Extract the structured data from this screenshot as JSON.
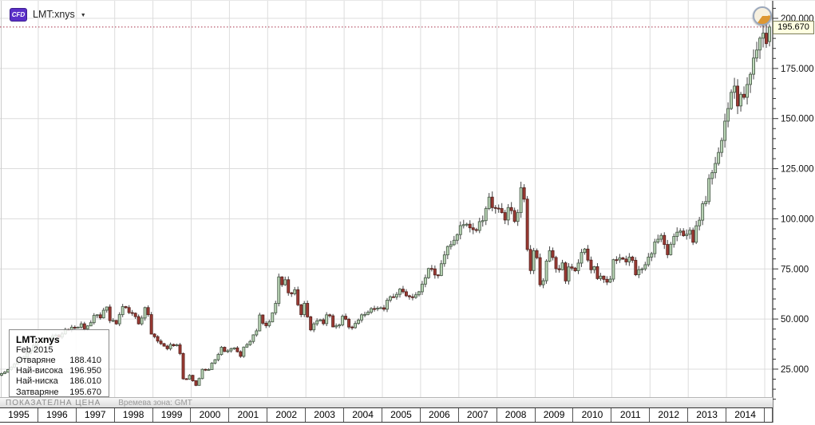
{
  "window": {
    "symbol": "LMT:xnys",
    "instrument_badge": "CFD"
  },
  "icons": {
    "dropdown_arrow": "▼"
  },
  "price_callout": {
    "value": "195.670"
  },
  "info_panel": {
    "title": "LMT:xnys",
    "period": "Feb 2015",
    "rows": [
      {
        "label": "Отваряне",
        "value": "188.410"
      },
      {
        "label": "Най-висока",
        "value": "196.950"
      },
      {
        "label": "Най-ниска",
        "value": "186.010"
      },
      {
        "label": "Затваряне",
        "value": "195.670"
      }
    ]
  },
  "status_bar": {
    "left": "ПОКАЗАТЕЛНА ЦЕНА",
    "right": "Времева зона: GMT"
  },
  "chart_data": {
    "type": "candlestick",
    "title": "LMT:xnys monthly CFD price",
    "symbol": "LMT:xnys",
    "interval": "monthly",
    "start_month": "1995-01",
    "end_month": "2015-02",
    "first_open": 22.0,
    "closes": [
      22.8,
      23.5,
      24.8,
      26.0,
      27.5,
      29.0,
      30.2,
      31.0,
      32.8,
      34.2,
      36.8,
      39.4,
      38.8,
      39.6,
      40.4,
      39.8,
      41.6,
      42.0,
      41.0,
      42.6,
      44.8,
      44.6,
      45.9,
      45.7,
      45.9,
      47.6,
      45.1,
      46.6,
      48.2,
      51.8,
      52.1,
      50.6,
      54.4,
      56.0,
      49.2,
      49.3,
      47.6,
      52.2,
      56.2,
      55.7,
      53.2,
      52.9,
      51.2,
      47.6,
      50.5,
      55.7,
      52.2,
      42.5,
      41.2,
      39.0,
      37.7,
      36.5,
      35.2,
      37.3,
      36.7,
      37.1,
      32.8,
      20.2,
      20.0,
      21.9,
      19.2,
      16.9,
      20.3,
      24.9,
      24.7,
      24.8,
      28.0,
      29.7,
      32.3,
      35.9,
      33.8,
      34.1,
      35.1,
      35.6,
      33.7,
      31.4,
      36.0,
      37.2,
      38.8,
      42.1,
      44.1,
      52.0,
      47.9,
      46.7,
      48.6,
      53.1,
      57.8,
      71.0,
      67.1,
      69.6,
      63.1,
      62.6,
      64.6,
      57.1,
      52.2,
      57.8,
      51.1,
      44.6,
      47.6,
      49.1,
      49.6,
      47.7,
      52.1,
      51.6,
      46.1,
      46.6,
      47.1,
      51.4,
      49.9,
      46.0,
      45.7,
      47.8,
      49.5,
      52.1,
      52.3,
      53.4,
      55.2,
      55.1,
      55.4,
      55.6,
      54.9,
      59.4,
      61.1,
      61.0,
      62.3,
      64.9,
      63.6,
      61.6,
      61.1,
      60.8,
      62.1,
      63.6,
      67.4,
      70.6,
      75.2,
      75.0,
      72.0,
      71.7,
      77.6,
      82.0,
      86.2,
      87.1,
      89.3,
      92.1,
      96.6,
      97.1,
      97.3,
      95.5,
      94.6,
      94.2,
      98.6,
      99.1,
      105.1,
      110.8,
      105.6,
      105.3,
      105.1,
      103.1,
      99.4,
      105.6,
      104.1,
      98.7,
      103.1,
      115.5,
      109.8,
      84.7,
      74.2,
      84.1,
      80.6,
      67.1,
      69.1,
      78.9,
      84.1,
      80.7,
      75.1,
      74.6,
      78.0,
      69.0,
      76.0,
      75.4,
      74.1,
      77.9,
      83.2,
      84.9,
      79.4,
      74.6,
      76.1,
      70.2,
      71.4,
      69.8,
      68.4,
      69.9,
      79.6,
      79.5,
      80.5,
      79.9,
      78.5,
      80.9,
      79.3,
      72.1,
      74.6,
      75.0,
      77.1,
      80.9,
      82.6,
      88.4,
      89.8,
      91.7,
      87.2,
      82.1,
      87.3,
      91.2,
      93.3,
      93.9,
      91.6,
      92.3,
      94.3,
      88.3,
      96.5,
      99.3,
      107.5,
      108.6,
      120.1,
      123.0,
      127.6,
      133.1,
      139.1,
      148.7,
      155.0,
      163.1,
      166.2,
      156.3,
      162.1,
      160.6,
      167.0,
      172.1,
      180.2,
      184.2,
      190.1,
      192.6,
      187.4,
      195.67
    ],
    "last_candle": {
      "period": "Feb 2015",
      "open": 188.41,
      "high": 196.95,
      "low": 186.01,
      "close": 195.67
    },
    "current_price": 195.67,
    "y_axis": {
      "ticks": [
        25,
        50,
        75,
        100,
        125,
        150,
        175,
        200
      ],
      "minor_step": 5,
      "label_format": "3-decimals"
    },
    "x_axis": {
      "year_labels": [
        "1995",
        "1996",
        "1997",
        "1998",
        "1999",
        "2000",
        "2001",
        "2002",
        "2003",
        "2004",
        "2005",
        "2006",
        "2007",
        "2008",
        "2009",
        "2010",
        "2011",
        "2012",
        "2013",
        "2014"
      ]
    },
    "grid": true,
    "legend": "none",
    "colors": {
      "up_fill": "#bcd8b8",
      "up_stroke": "#4d5f4d",
      "down_fill": "#a03b34",
      "down_stroke": "#58231f",
      "wick": "#444444",
      "grid": "#dcdcdc",
      "price_line": "#a8334a",
      "axis": "#333333",
      "badge": "#5a2fc8",
      "callout_bg": "#ffffe1"
    }
  }
}
